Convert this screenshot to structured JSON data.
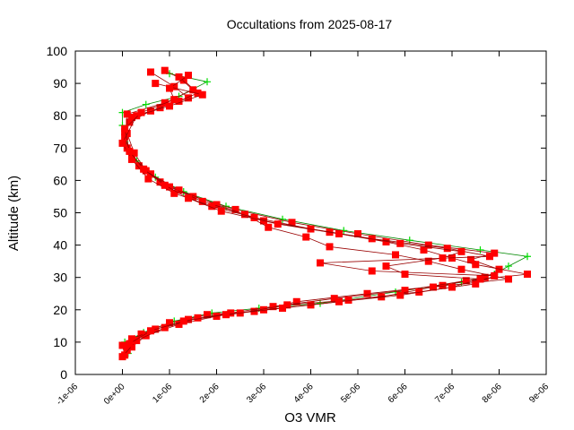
{
  "chart_data": {
    "type": "scatter",
    "title": "Occultations from 2025-08-17",
    "xlabel": "O3 VMR",
    "ylabel": "Altitude (km)",
    "xlim": [
      -1e-06,
      9e-06
    ],
    "ylim": [
      0,
      100
    ],
    "xticks": [
      {
        "value": -1e-06,
        "label": "-1e-06"
      },
      {
        "value": 0,
        "label": "0e+00"
      },
      {
        "value": 1e-06,
        "label": "1e-06"
      },
      {
        "value": 2e-06,
        "label": "2e-06"
      },
      {
        "value": 3e-06,
        "label": "3e-06"
      },
      {
        "value": 4e-06,
        "label": "4e-06"
      },
      {
        "value": 5e-06,
        "label": "5e-06"
      },
      {
        "value": 6e-06,
        "label": "6e-06"
      },
      {
        "value": 7e-06,
        "label": "7e-06"
      },
      {
        "value": 8e-06,
        "label": "8e-06"
      },
      {
        "value": 9e-06,
        "label": "9e-06"
      }
    ],
    "yticks": [
      {
        "value": 0,
        "label": "0"
      },
      {
        "value": 10,
        "label": "10"
      },
      {
        "value": 20,
        "label": "20"
      },
      {
        "value": 30,
        "label": "30"
      },
      {
        "value": 40,
        "label": "40"
      },
      {
        "value": 50,
        "label": "50"
      },
      {
        "value": 60,
        "label": "60"
      },
      {
        "value": 70,
        "label": "70"
      },
      {
        "value": 80,
        "label": "80"
      },
      {
        "value": 90,
        "label": "90"
      },
      {
        "value": 100,
        "label": "100"
      }
    ],
    "grid": false,
    "legend": "none",
    "series": [
      {
        "marker": "plus",
        "color": "#00dd00",
        "line_color": "#008800",
        "points": [
          [
            1.2e-07,
            6.5
          ],
          [
            5e-08,
            10.0
          ],
          [
            4.5e-07,
            13.0
          ],
          [
            1.1e-06,
            16.5
          ],
          [
            1.9e-06,
            19.0
          ],
          [
            2.9e-06,
            20.5
          ],
          [
            4.2e-06,
            22.0
          ],
          [
            5.8e-06,
            25.5
          ],
          [
            7.2e-06,
            28.5
          ],
          [
            7.9e-06,
            31.0
          ],
          [
            8.2e-06,
            33.5
          ],
          [
            8.6e-06,
            36.5
          ],
          [
            7.6e-06,
            38.5
          ],
          [
            6.1e-06,
            41.5
          ],
          [
            4.7e-06,
            44.5
          ],
          [
            3.4e-06,
            48.0
          ],
          [
            2.2e-06,
            52.0
          ],
          [
            1.3e-06,
            56.5
          ],
          [
            7e-07,
            61.0
          ],
          [
            3e-07,
            66.0
          ],
          [
            5e-08,
            72.0
          ],
          [
            0.0,
            77.0
          ],
          [
            0.0,
            81.0
          ],
          [
            5e-07,
            83.5
          ],
          [
            1.2e-06,
            86.0
          ],
          [
            1.8e-06,
            90.5
          ],
          [
            1e-06,
            93.0
          ]
        ]
      },
      {
        "marker": "square",
        "color": "#ff0000",
        "line_color": "#990000",
        "points": [
          [
            5e-08,
            6.0
          ],
          [
            0.0,
            9.0
          ],
          [
            4e-07,
            12.5
          ],
          [
            1e-06,
            16.0
          ],
          [
            1.8e-06,
            18.5
          ],
          [
            2.8e-06,
            19.5
          ],
          [
            3.7e-06,
            22.5
          ],
          [
            5.2e-06,
            25.0
          ],
          [
            6.8e-06,
            27.5
          ],
          [
            7.7e-06,
            30.0
          ],
          [
            8e-06,
            32.5
          ],
          [
            7.4e-06,
            35.5
          ],
          [
            7.9e-06,
            37.5
          ],
          [
            6.5e-06,
            40.0
          ],
          [
            5e-06,
            43.5
          ],
          [
            3.6e-06,
            47.0
          ],
          [
            2.4e-06,
            51.0
          ],
          [
            1.5e-06,
            55.0
          ],
          [
            8e-07,
            59.5
          ],
          [
            3.5e-07,
            64.5
          ],
          [
            1e-07,
            70.0
          ],
          [
            5e-08,
            75.0
          ],
          [
            2e-07,
            79.5
          ],
          [
            8e-07,
            82.5
          ],
          [
            1.4e-06,
            85.5
          ],
          [
            1.1e-06,
            89.0
          ],
          [
            6e-07,
            93.5
          ]
        ]
      },
      {
        "marker": "square",
        "color": "#ff0000",
        "line_color": "#990000",
        "points": [
          [
            1e-07,
            7.5
          ],
          [
            2e-07,
            11.0
          ],
          [
            7e-07,
            14.0
          ],
          [
            1.4e-06,
            17.0
          ],
          [
            2.3e-06,
            19.0
          ],
          [
            3.2e-06,
            21.0
          ],
          [
            4.5e-06,
            23.5
          ],
          [
            6e-06,
            26.0
          ],
          [
            7.3e-06,
            29.0
          ],
          [
            8.6e-06,
            31.0
          ],
          [
            7.5e-06,
            34.0
          ],
          [
            7e-06,
            36.0
          ],
          [
            6.4e-06,
            38.5
          ],
          [
            5.6e-06,
            41.0
          ],
          [
            4.4e-06,
            44.0
          ],
          [
            3e-06,
            47.5
          ],
          [
            2e-06,
            52.5
          ],
          [
            1.2e-06,
            57.0
          ],
          [
            6e-07,
            62.0
          ],
          [
            2e-07,
            67.5
          ],
          [
            5e-08,
            73.5
          ],
          [
            1.5e-07,
            78.0
          ],
          [
            6e-07,
            81.5
          ],
          [
            1.2e-06,
            84.5
          ],
          [
            1.6e-06,
            87.0
          ],
          [
            1.3e-06,
            91.0
          ],
          [
            9e-07,
            94.0
          ]
        ]
      },
      {
        "marker": "square",
        "color": "#ff0000",
        "line_color": "#990000",
        "points": [
          [
            2e-07,
            8.5
          ],
          [
            5e-07,
            12.0
          ],
          [
            1.2e-06,
            15.5
          ],
          [
            2e-06,
            18.0
          ],
          [
            3e-06,
            20.0
          ],
          [
            4e-06,
            21.5
          ],
          [
            5.5e-06,
            24.0
          ],
          [
            6.6e-06,
            27.0
          ],
          [
            8.2e-06,
            29.5
          ],
          [
            7.2e-06,
            32.5
          ],
          [
            6.5e-06,
            35.0
          ],
          [
            5.8e-06,
            37.0
          ],
          [
            4.4e-06,
            39.5
          ],
          [
            3.9e-06,
            42.5
          ],
          [
            3.1e-06,
            45.5
          ],
          [
            2.6e-06,
            49.5
          ],
          [
            1.7e-06,
            53.5
          ],
          [
            1e-06,
            58.0
          ],
          [
            5e-07,
            63.0
          ],
          [
            2.5e-07,
            68.5
          ],
          [
            1e-07,
            74.5
          ],
          [
            1e-07,
            80.5
          ],
          [
            9e-07,
            84.0
          ],
          [
            1.5e-06,
            88.0
          ],
          [
            1.2e-06,
            92.0
          ]
        ]
      },
      {
        "marker": "square",
        "color": "#ff0000",
        "line_color": "#990000",
        "points": [
          [
            0.0,
            5.5
          ],
          [
            3e-07,
            10.5
          ],
          [
            9e-07,
            14.5
          ],
          [
            1.6e-06,
            17.5
          ],
          [
            2.5e-06,
            19.0
          ],
          [
            3.5e-06,
            21.5
          ],
          [
            4.8e-06,
            23.0
          ],
          [
            6.3e-06,
            25.5
          ],
          [
            7.5e-06,
            28.0
          ],
          [
            7.9e-06,
            30.5
          ],
          [
            5.3e-06,
            32.0
          ],
          [
            4.2e-06,
            34.5
          ],
          [
            7.8e-06,
            36.5
          ],
          [
            6.9e-06,
            39.0
          ],
          [
            5.3e-06,
            42.0
          ],
          [
            4e-06,
            45.0
          ],
          [
            2.8e-06,
            48.5
          ],
          [
            1.9e-06,
            52.0
          ],
          [
            1.1e-06,
            56.0
          ],
          [
            5.5e-07,
            60.5
          ],
          [
            2e-07,
            66.5
          ],
          [
            0.0,
            71.5
          ],
          [
            3e-07,
            80.0
          ],
          [
            1e-06,
            83.0
          ],
          [
            1.7e-06,
            86.5
          ],
          [
            7e-07,
            90.0
          ]
        ]
      },
      {
        "marker": "square",
        "color": "#ff0000",
        "line_color": "#990000",
        "points": [
          [
            1.5e-07,
            9.5
          ],
          [
            6e-07,
            13.5
          ],
          [
            1.3e-06,
            16.5
          ],
          [
            2.2e-06,
            18.5
          ],
          [
            3.4e-06,
            20.5
          ],
          [
            4.6e-06,
            22.5
          ],
          [
            5.9e-06,
            24.5
          ],
          [
            7e-06,
            27.0
          ],
          [
            7.6e-06,
            29.5
          ],
          [
            6e-06,
            31.0
          ],
          [
            5.6e-06,
            33.5
          ],
          [
            6.8e-06,
            36.0
          ],
          [
            7.2e-06,
            38.0
          ],
          [
            5.9e-06,
            40.5
          ],
          [
            4.6e-06,
            43.5
          ],
          [
            3.3e-06,
            46.5
          ],
          [
            2.1e-06,
            50.5
          ],
          [
            1.4e-06,
            54.5
          ],
          [
            9e-07,
            58.5
          ],
          [
            4.5e-07,
            63.5
          ],
          [
            1.5e-07,
            69.0
          ],
          [
            5e-08,
            76.0
          ],
          [
            4e-07,
            81.0
          ],
          [
            1.1e-06,
            85.0
          ],
          [
            1e-06,
            88.5
          ],
          [
            1.4e-06,
            92.5
          ]
        ]
      }
    ]
  }
}
